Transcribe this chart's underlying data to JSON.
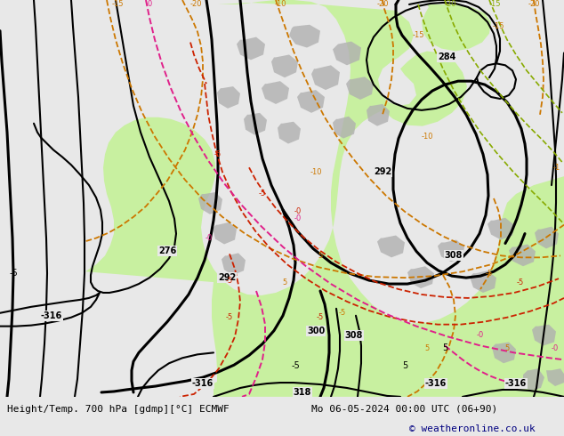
{
  "title_left": "Height/Temp. 700 hPa [gdmp][°C] ECMWF",
  "title_right": "Mo 06-05-2024 00:00 UTC (06+90)",
  "copyright": "© weatheronline.co.uk",
  "bg_color": "#e8e8e8",
  "green_color": "#c8f0a0",
  "gray_color": "#b0b0b0",
  "orange_color": "#cc7700",
  "red_color": "#cc2200",
  "pink_color": "#e0208a",
  "olive_color": "#88aa00",
  "black_color": "#000000",
  "footer_bg": "#d8d8d8",
  "footer_text_color": "#000000",
  "copyright_color": "#000080"
}
